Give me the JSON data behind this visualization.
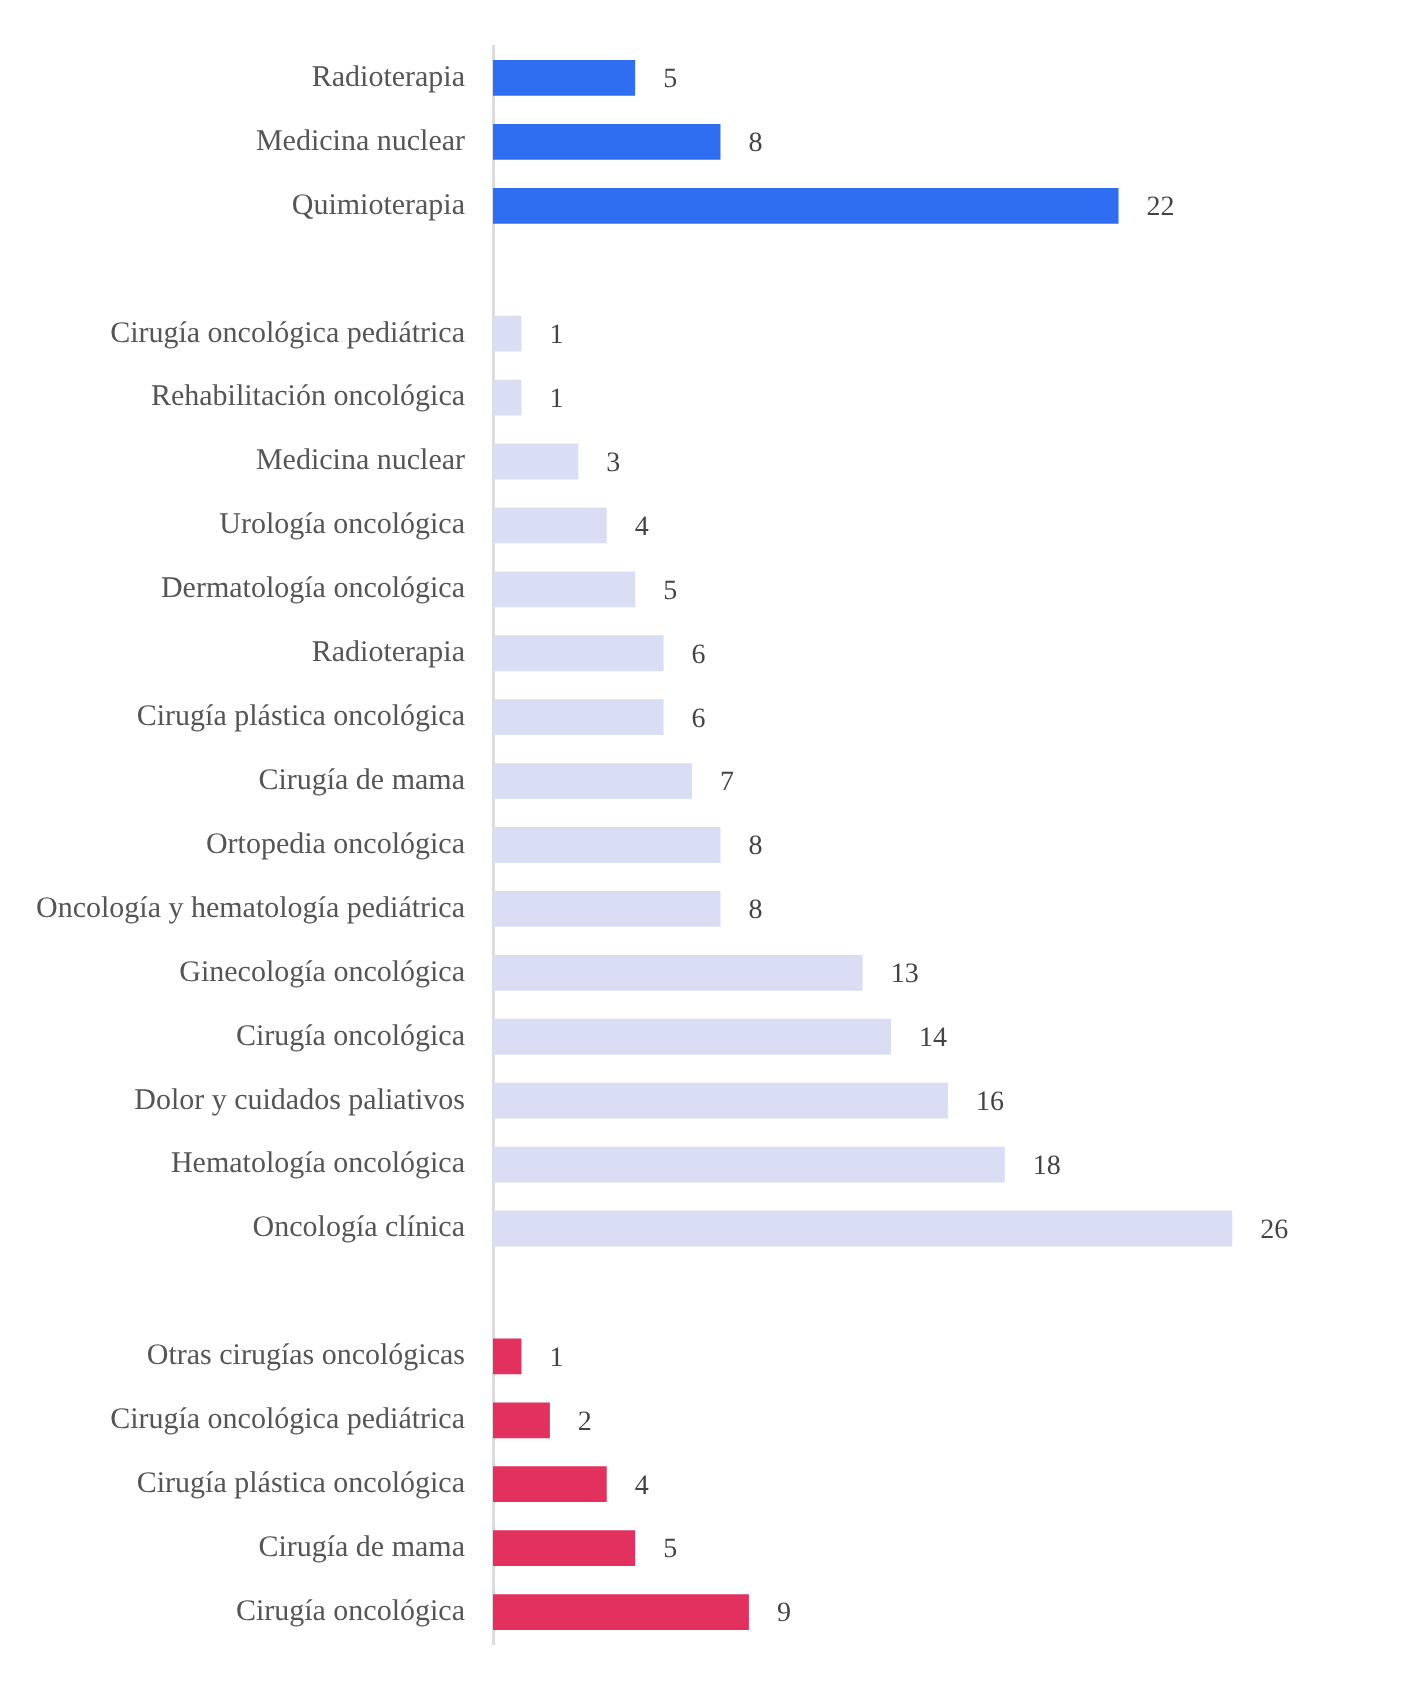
{
  "chart_data": {
    "type": "bar",
    "orientation": "horizontal",
    "tick_labels": "y",
    "data_labels": true,
    "grid": false,
    "legend": false,
    "categories": [
      "Radioterapia",
      "Medicina nuclear",
      "Quimioterapia",
      null,
      "Cirugía oncológica pediátrica",
      "Rehabilitación oncológica",
      "Medicina nuclear",
      "Urología oncológica",
      "Dermatología oncológica",
      "Radioterapia",
      "Cirugía plástica oncológica",
      "Cirugía de mama",
      "Ortopedia oncológica",
      "Oncología y hematología pediátrica",
      "Ginecología oncológica",
      "Cirugía oncológica",
      "Dolor y cuidados paliativos",
      "Hematología oncológica",
      "Oncología clínica",
      null,
      "Otras cirugías oncológicas",
      "Cirugía oncológica pediátrica",
      "Cirugía plástica oncológica",
      "Cirugía de mama",
      "Cirugía oncológica"
    ],
    "values": [
      5,
      8,
      22,
      null,
      1,
      1,
      3,
      4,
      5,
      6,
      6,
      7,
      8,
      8,
      13,
      14,
      16,
      18,
      26,
      null,
      1,
      2,
      4,
      5,
      9
    ],
    "colors": [
      "#2f6ef0",
      "#2f6ef0",
      "#2f6ef0",
      null,
      "#d9def5",
      "#d9def5",
      "#d9def5",
      "#d9def5",
      "#d9def5",
      "#d9def5",
      "#d9def5",
      "#d9def5",
      "#d9def5",
      "#d9def5",
      "#d9def5",
      "#d9def5",
      "#d9def5",
      "#d9def5",
      "#d9def5",
      null,
      "#e2305f",
      "#e2305f",
      "#e2305f",
      "#e2305f",
      "#e2305f"
    ]
  }
}
